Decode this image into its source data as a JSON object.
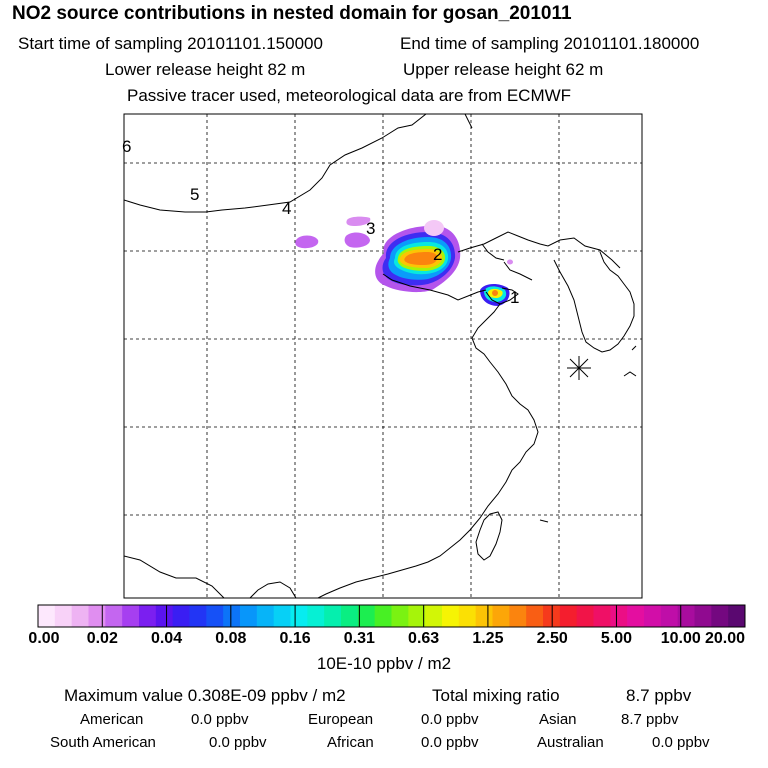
{
  "header": {
    "title": "NO2 source contributions in nested domain for gosan_201011",
    "start_sampling": "Start time of sampling 20101101.150000",
    "end_sampling": "End time of sampling 20101101.180000",
    "lower_release": "Lower release height   82 m",
    "upper_release": "Upper release height   62 m",
    "tracer_note": "Passive tracer used, meteorological data are from ECMWF"
  },
  "map": {
    "labels": [
      "6",
      "5",
      "4",
      "3",
      "2",
      "1"
    ]
  },
  "colorbar": {
    "ticks": [
      "0.00",
      "0.02",
      "0.04",
      "0.08",
      "0.16",
      "0.31",
      "0.63",
      "1.25",
      "2.50",
      "5.00",
      "10.00",
      "20.00"
    ],
    "unit": "10E-10 ppbv / m2",
    "colors": [
      "#fde8fd",
      "#f8d2f8",
      "#eeb3f3",
      "#e08ef0",
      "#c466f0",
      "#a63ff0",
      "#7b1ff0",
      "#5a14ef",
      "#3a1ef3",
      "#2235f5",
      "#1651f7",
      "#0c74f8",
      "#0896fa",
      "#07b4f8",
      "#07d0f6",
      "#07ecf0",
      "#06f0d4",
      "#05efae",
      "#0aee82",
      "#1cee50",
      "#48f024",
      "#7af212",
      "#a6f40a",
      "#d2f606",
      "#f6f404",
      "#fbe004",
      "#fcc405",
      "#fca608",
      "#fb840e",
      "#f95e14",
      "#f63a1c",
      "#f41e2e",
      "#f11448",
      "#ef1066",
      "#eb0e85",
      "#e40ea0",
      "#d20ea8",
      "#bf0ea8",
      "#a80c9e",
      "#900a90",
      "#740880",
      "#5a0870"
    ]
  },
  "summary": {
    "max_label": "Maximum value  0.308E-09 ppbv / m2",
    "total_label": "Total mixing ratio",
    "total_value": "8.7 ppbv",
    "regions": [
      {
        "name": "American",
        "value": "0.0 ppbv"
      },
      {
        "name": "European",
        "value": "0.0 ppbv"
      },
      {
        "name": "Asian",
        "value": "8.7 ppbv"
      },
      {
        "name": "South American",
        "value": "0.0 ppbv"
      },
      {
        "name": "African",
        "value": "0.0 ppbv"
      },
      {
        "name": "Australian",
        "value": "0.0 ppbv"
      }
    ]
  }
}
